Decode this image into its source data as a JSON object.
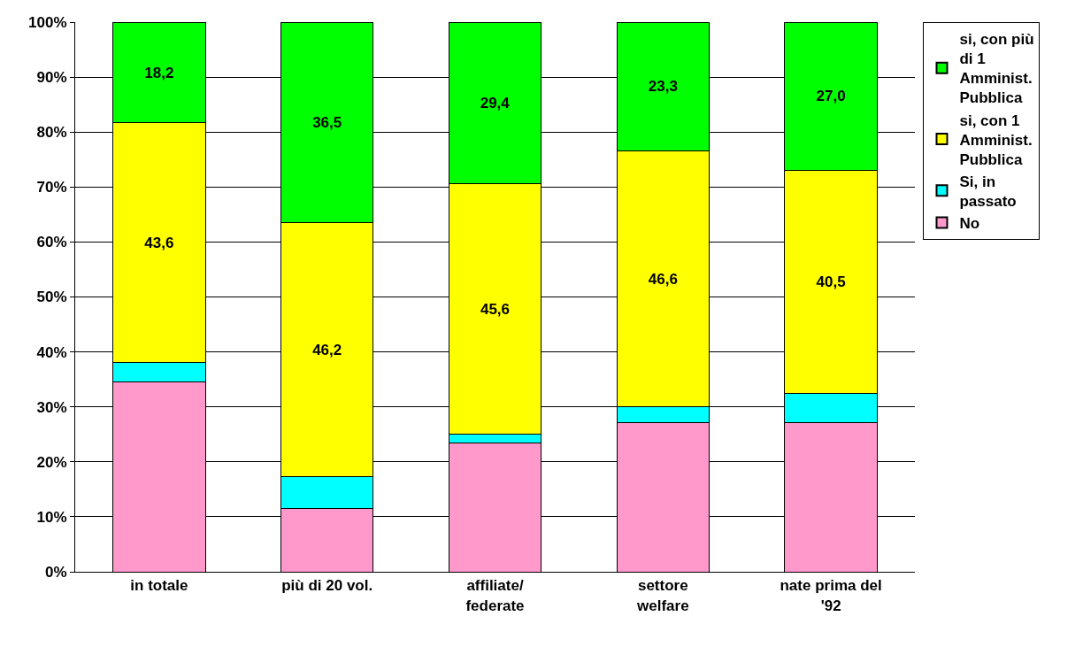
{
  "chart_data": {
    "type": "bar",
    "stacked": true,
    "categories": [
      "in totale",
      "più di 20 vol.",
      "affiliate/ federate",
      "settore welfare",
      "nate prima del '92"
    ],
    "series": [
      {
        "name": "No",
        "color": "#ff99cc",
        "values": [
          34.5,
          11.5,
          23.4,
          27.2,
          27.1
        ]
      },
      {
        "name": "Si, in passato",
        "color": "#00ffff",
        "values": [
          3.6,
          5.8,
          1.6,
          2.8,
          5.4
        ]
      },
      {
        "name": "si, con 1 Amminist. Pubblica",
        "color": "#ffff00",
        "values": [
          43.6,
          46.2,
          45.6,
          46.6,
          40.5
        ],
        "value_labels": [
          "43,6",
          "46,2",
          "45,6",
          "46,6",
          "40,5"
        ]
      },
      {
        "name": "si, con più di 1 Amminist. Pubblica",
        "color": "#00ff00",
        "values": [
          18.2,
          36.5,
          29.4,
          23.3,
          27.0
        ],
        "value_labels": [
          "18,2",
          "36,5",
          "29,4",
          "23,3",
          "27,0"
        ]
      }
    ],
    "ylim": [
      0,
      100
    ],
    "yticks": [
      {
        "value": 0,
        "label": "0%"
      },
      {
        "value": 10,
        "label": "10%"
      },
      {
        "value": 20,
        "label": "20%"
      },
      {
        "value": 30,
        "label": "30%"
      },
      {
        "value": 40,
        "label": "40%"
      },
      {
        "value": 50,
        "label": "50%"
      },
      {
        "value": 60,
        "label": "60%"
      },
      {
        "value": 70,
        "label": "70%"
      },
      {
        "value": 80,
        "label": "80%"
      },
      {
        "value": 90,
        "label": "90%"
      },
      {
        "value": 100,
        "label": "100%"
      }
    ],
    "grid": "y",
    "legend": "right"
  }
}
